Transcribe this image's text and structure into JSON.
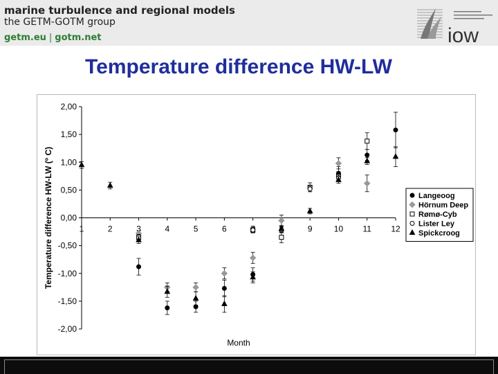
{
  "header": {
    "line1": "marine turbulence and regional models",
    "line2": "the GETM-GOTM group",
    "link1": "getm.eu",
    "separator": "|",
    "link2": "gotm.net",
    "logo_text": "iow"
  },
  "slide": {
    "title": "Temperature difference HW-LW"
  },
  "chart_data": {
    "type": "scatter",
    "title": "",
    "xlabel": "Month",
    "ylabel": "Temperature difference HW-LW (º C)",
    "xlim": [
      1,
      12
    ],
    "ylim": [
      -2,
      2
    ],
    "x_ticks": [
      "1",
      "2",
      "3",
      "4",
      "5",
      "6",
      "7",
      "8",
      "9",
      "10",
      "11",
      "12"
    ],
    "y_ticks": [
      "2,00",
      "1,50",
      "1,00",
      "0,50",
      "0,00",
      "-0,50",
      "-1,00",
      "-1,50",
      "-2,00"
    ],
    "y_tick_values": [
      2,
      1.5,
      1,
      0.5,
      0,
      -0.5,
      -1,
      -1.5,
      -2
    ],
    "grid": false,
    "legend_position": "right",
    "series": [
      {
        "name": "Langeoog",
        "marker": "circle-filled",
        "color": "#000000",
        "points": [
          [
            3,
            -0.88
          ],
          [
            4,
            -1.62
          ],
          [
            5,
            -1.6
          ],
          [
            6,
            -1.27
          ],
          [
            7,
            -1.02
          ],
          [
            10,
            0.8
          ],
          [
            11,
            1.13
          ],
          [
            12,
            1.58
          ]
        ],
        "errors": [
          0.15,
          0.12,
          0.1,
          0.15,
          0.12,
          0.12,
          0.1,
          0.32
        ]
      },
      {
        "name": "Hörnum Deep",
        "marker": "diamond",
        "color": "#999999",
        "points": [
          [
            3,
            -0.28
          ],
          [
            4,
            -1.25
          ],
          [
            5,
            -1.25
          ],
          [
            6,
            -1.0
          ],
          [
            7,
            -0.72
          ],
          [
            8,
            -0.05
          ],
          [
            10,
            0.98
          ],
          [
            11,
            0.62
          ]
        ],
        "errors": [
          0.05,
          0.08,
          0.08,
          0.1,
          0.1,
          0.1,
          0.1,
          0.15
        ]
      },
      {
        "name": "Rømø-Cyb",
        "marker": "square-open",
        "color": "#000000",
        "points": [
          [
            3,
            -0.35
          ],
          [
            7,
            -0.22
          ],
          [
            8,
            -0.35
          ],
          [
            9,
            0.55
          ],
          [
            10,
            0.75
          ],
          [
            11,
            1.38
          ]
        ],
        "errors": [
          0.05,
          0.05,
          0.1,
          0.08,
          0.08,
          0.15
        ]
      },
      {
        "name": "Lister Ley",
        "marker": "circle-open",
        "color": "#000000",
        "points": [
          [
            7,
            -0.22
          ],
          [
            8,
            -0.22
          ],
          [
            9,
            0.52
          ],
          [
            10,
            0.72
          ]
        ],
        "errors": [
          0.05,
          0.05,
          0.05,
          0.05
        ]
      },
      {
        "name": "Spickcroog",
        "marker": "triangle",
        "color": "#000000",
        "points": [
          [
            1,
            0.95
          ],
          [
            2,
            0.58
          ],
          [
            3,
            -0.4
          ],
          [
            4,
            -1.33
          ],
          [
            5,
            -1.45
          ],
          [
            6,
            -1.55
          ],
          [
            7,
            -1.07
          ],
          [
            8,
            -0.2
          ],
          [
            9,
            0.12
          ],
          [
            10,
            0.68
          ],
          [
            11,
            1.02
          ],
          [
            12,
            1.1
          ]
        ],
        "errors": [
          0.06,
          0.06,
          0.06,
          0.1,
          0.12,
          0.15,
          0.1,
          0.06,
          0.05,
          0.06,
          0.06,
          0.18
        ]
      }
    ]
  }
}
